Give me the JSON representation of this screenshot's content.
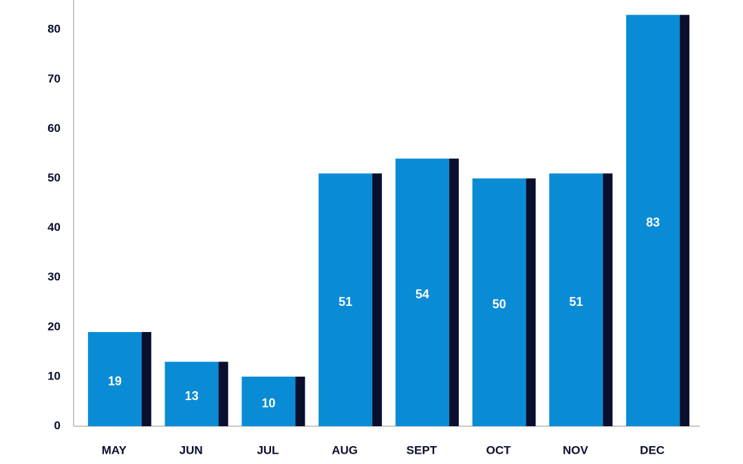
{
  "chart_data": {
    "type": "bar",
    "categories": [
      "MAY",
      "JUN",
      "JUL",
      "AUG",
      "SEPT",
      "OCT",
      "NOV",
      "DEC"
    ],
    "values": [
      19,
      13,
      10,
      51,
      54,
      50,
      51,
      83
    ],
    "color": "#0a8bd6",
    "ylim": [
      0,
      86
    ],
    "yticks": [
      0,
      10,
      20,
      30,
      40,
      50,
      60,
      70,
      80
    ],
    "grid": false
  }
}
